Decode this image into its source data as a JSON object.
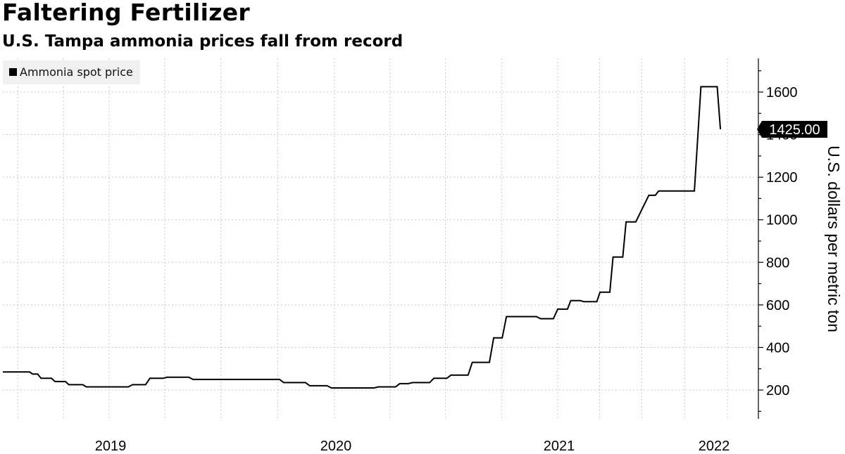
{
  "header": {
    "title": "Faltering Fertilizer",
    "subtitle": "U.S. Tampa ammonia prices fall from record"
  },
  "chart_data": {
    "type": "line",
    "title": "Faltering Fertilizer",
    "subtitle": "U.S. Tampa ammonia prices fall from record",
    "xlabel": "",
    "ylabel": "U.S. dollars per metric ton",
    "x_tick_labels": [
      "2019",
      "2020",
      "2021",
      "2022"
    ],
    "y_ticks": [
      200,
      400,
      600,
      800,
      1000,
      1200,
      1400,
      1600
    ],
    "ylim": [
      80,
      1700
    ],
    "grid": true,
    "legend_position": "top-left",
    "line_color": "#000000",
    "last_value_label": "1425.00",
    "series": [
      {
        "name": "Ammonia spot price",
        "points": [
          [
            "2018-06-01",
            285
          ],
          [
            "2018-07-25",
            285
          ],
          [
            "2018-07-31",
            275
          ],
          [
            "2018-08-10",
            275
          ],
          [
            "2018-08-17",
            255
          ],
          [
            "2018-09-07",
            255
          ],
          [
            "2018-09-14",
            240
          ],
          [
            "2018-10-05",
            240
          ],
          [
            "2018-10-12",
            225
          ],
          [
            "2018-11-09",
            225
          ],
          [
            "2018-11-16",
            215
          ],
          [
            "2019-02-01",
            215
          ],
          [
            "2019-02-08",
            225
          ],
          [
            "2019-03-01",
            225
          ],
          [
            "2019-03-08",
            255
          ],
          [
            "2019-03-29",
            255
          ],
          [
            "2019-04-05",
            260
          ],
          [
            "2019-05-10",
            260
          ],
          [
            "2019-05-17",
            250
          ],
          [
            "2019-10-04",
            250
          ],
          [
            "2019-10-11",
            235
          ],
          [
            "2019-11-15",
            235
          ],
          [
            "2019-11-22",
            220
          ],
          [
            "2019-12-20",
            220
          ],
          [
            "2019-12-27",
            210
          ],
          [
            "2020-03-06",
            210
          ],
          [
            "2020-03-13",
            215
          ],
          [
            "2020-04-10",
            215
          ],
          [
            "2020-04-17",
            230
          ],
          [
            "2020-05-01",
            230
          ],
          [
            "2020-05-08",
            235
          ],
          [
            "2020-06-05",
            235
          ],
          [
            "2020-06-12",
            255
          ],
          [
            "2020-07-03",
            255
          ],
          [
            "2020-07-10",
            270
          ],
          [
            "2020-08-07",
            270
          ],
          [
            "2020-08-14",
            330
          ],
          [
            "2020-09-11",
            330
          ],
          [
            "2020-09-18",
            445
          ],
          [
            "2020-10-02",
            445
          ],
          [
            "2020-10-09",
            545
          ],
          [
            "2020-11-27",
            545
          ],
          [
            "2020-12-04",
            535
          ],
          [
            "2020-12-25",
            535
          ],
          [
            "2021-01-01",
            580
          ],
          [
            "2021-01-22",
            580
          ],
          [
            "2021-01-29",
            620
          ],
          [
            "2021-02-19",
            620
          ],
          [
            "2021-02-26",
            615
          ],
          [
            "2021-03-26",
            615
          ],
          [
            "2021-04-02",
            660
          ],
          [
            "2021-04-23",
            660
          ],
          [
            "2021-04-30",
            825
          ],
          [
            "2021-05-21",
            825
          ],
          [
            "2021-05-28",
            990
          ],
          [
            "2021-06-18",
            990
          ],
          [
            "2021-07-16",
            1115
          ],
          [
            "2021-07-30",
            1115
          ],
          [
            "2021-08-06",
            1135
          ],
          [
            "2021-10-22",
            1135
          ],
          [
            "2021-11-05",
            1625
          ],
          [
            "2021-12-10",
            1625
          ],
          [
            "2021-12-17",
            1425
          ]
        ]
      }
    ]
  }
}
